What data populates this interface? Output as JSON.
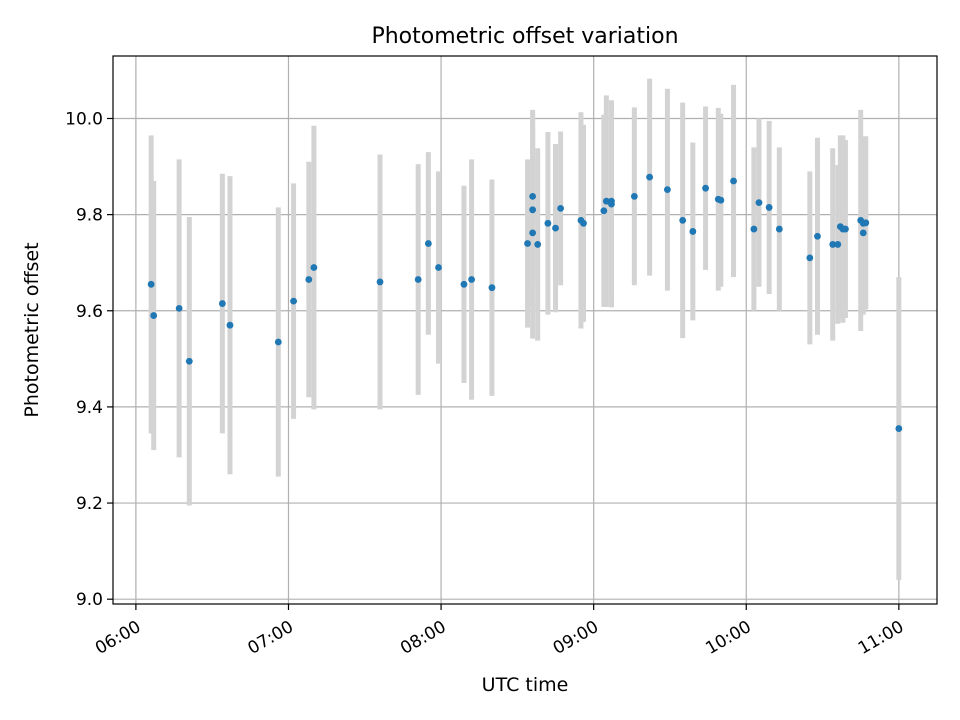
{
  "chart_data": {
    "type": "scatter",
    "title": "Photometric offset variation",
    "xlabel": "UTC time",
    "ylabel": "Photometric offset",
    "x_ticks": [
      "06:00",
      "07:00",
      "08:00",
      "09:00",
      "10:00",
      "11:00"
    ],
    "y_ticks": [
      "9.0",
      "9.2",
      "9.4",
      "9.6",
      "9.8",
      "10.0"
    ],
    "xlim": [
      "05:51",
      "11:15"
    ],
    "ylim": [
      8.99,
      10.13
    ],
    "grid": true,
    "colors": {
      "point": "#1f77b4",
      "errorbar": "#d3d3d3"
    },
    "series": [
      {
        "x": [
          "06:06",
          "06:07",
          "06:17",
          "06:21",
          "06:34",
          "06:37",
          "06:56",
          "07:02",
          "07:08",
          "07:10",
          "07:36",
          "07:51",
          "07:55",
          "07:59",
          "08:09",
          "08:12",
          "08:20",
          "08:34",
          "08:36",
          "08:36",
          "08:36",
          "08:38",
          "08:42",
          "08:45",
          "08:47",
          "08:55",
          "08:56",
          "09:04",
          "09:05",
          "09:07",
          "09:07",
          "09:16",
          "09:22",
          "09:29",
          "09:35",
          "09:39",
          "09:44",
          "09:49",
          "09:50",
          "09:55",
          "10:03",
          "10:05",
          "10:09",
          "10:13",
          "10:25",
          "10:28",
          "10:34",
          "10:36",
          "10:37",
          "10:38",
          "10:39",
          "10:45",
          "10:46",
          "10:46",
          "10:47",
          "11:00"
        ],
        "y": [
          9.655,
          9.59,
          9.605,
          9.495,
          9.615,
          9.57,
          9.535,
          9.62,
          9.665,
          9.69,
          9.66,
          9.665,
          9.74,
          9.69,
          9.655,
          9.665,
          9.648,
          9.74,
          9.762,
          9.838,
          9.81,
          9.738,
          9.782,
          9.772,
          9.813,
          9.788,
          9.782,
          9.808,
          9.828,
          9.822,
          9.828,
          9.838,
          9.878,
          9.852,
          9.788,
          9.765,
          9.855,
          9.832,
          9.83,
          9.87,
          9.77,
          9.825,
          9.815,
          9.77,
          9.71,
          9.755,
          9.738,
          9.738,
          9.775,
          9.77,
          9.77,
          9.788,
          9.782,
          9.762,
          9.783,
          9.355
        ],
        "yerr": [
          0.31,
          0.28,
          0.31,
          0.3,
          0.27,
          0.31,
          0.28,
          0.245,
          0.245,
          0.295,
          0.265,
          0.24,
          0.19,
          0.2,
          0.205,
          0.25,
          0.225,
          0.175,
          0.22,
          0.18,
          0.2,
          0.2,
          0.19,
          0.175,
          0.16,
          0.225,
          0.205,
          0.2,
          0.22,
          0.215,
          0.21,
          0.185,
          0.205,
          0.21,
          0.245,
          0.185,
          0.17,
          0.19,
          0.18,
          0.2,
          0.17,
          0.175,
          0.18,
          0.17,
          0.18,
          0.205,
          0.2,
          0.165,
          0.19,
          0.195,
          0.185,
          0.23,
          0.18,
          0.17,
          0.18,
          0.315
        ]
      }
    ]
  }
}
